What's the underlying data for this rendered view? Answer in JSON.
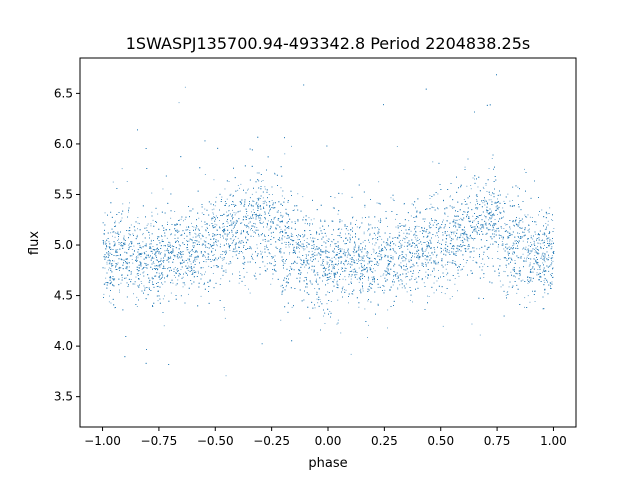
{
  "chart_data": {
    "type": "scatter",
    "title": "1SWASPJ135700.94-493342.8 Period 2204838.25s",
    "xlabel": "phase",
    "ylabel": "flux",
    "xlim": [
      -1.1,
      1.1
    ],
    "ylim": [
      3.2,
      6.85
    ],
    "grid": false,
    "point_color": "#1f77b4",
    "x_ticks": [
      -1.0,
      -0.75,
      -0.5,
      -0.25,
      0.0,
      0.25,
      0.5,
      0.75,
      1.0
    ],
    "x_tick_labels": [
      "−1.00",
      "−0.75",
      "−0.50",
      "−0.25",
      "0.00",
      "0.25",
      "0.50",
      "0.75",
      "1.00"
    ],
    "y_ticks": [
      3.5,
      4.0,
      4.5,
      5.0,
      5.5,
      6.0,
      6.5
    ],
    "y_tick_labels": [
      "3.5",
      "4.0",
      "4.5",
      "5.0",
      "5.5",
      "6.0",
      "6.5"
    ],
    "series": [
      {
        "phase": [
          -1.0,
          -0.95,
          -0.9,
          -0.85,
          -0.8,
          -0.75,
          -0.7,
          -0.65,
          -0.6,
          -0.55,
          -0.5,
          -0.45,
          -0.4,
          -0.35,
          -0.3,
          -0.25,
          -0.2,
          -0.15,
          -0.1,
          -0.05,
          0.0,
          0.05,
          0.1,
          0.15,
          0.2,
          0.25,
          0.3,
          0.35,
          0.4,
          0.45,
          0.5,
          0.55,
          0.6,
          0.65,
          0.7,
          0.75,
          0.8,
          0.85,
          0.9,
          0.95,
          1.0
        ],
        "flux_mean": [
          4.9,
          4.9,
          4.92,
          4.85,
          4.85,
          4.88,
          4.92,
          4.95,
          4.98,
          5.02,
          5.05,
          5.1,
          5.15,
          5.2,
          5.25,
          5.2,
          5.05,
          4.95,
          4.88,
          4.85,
          4.85,
          4.85,
          4.85,
          4.85,
          4.85,
          4.88,
          4.9,
          4.92,
          4.95,
          5.0,
          5.05,
          5.08,
          5.15,
          5.2,
          5.25,
          5.2,
          5.05,
          4.95,
          4.9,
          4.88,
          4.9
        ],
        "flux_spread": [
          0.28,
          0.3,
          0.28,
          0.28,
          0.3,
          0.28,
          0.28,
          0.28,
          0.28,
          0.28,
          0.3,
          0.3,
          0.32,
          0.35,
          0.35,
          0.35,
          0.35,
          0.32,
          0.3,
          0.32,
          0.35,
          0.32,
          0.3,
          0.3,
          0.3,
          0.28,
          0.28,
          0.28,
          0.28,
          0.28,
          0.3,
          0.3,
          0.32,
          0.35,
          0.35,
          0.35,
          0.35,
          0.32,
          0.3,
          0.3,
          0.28
        ]
      }
    ]
  }
}
